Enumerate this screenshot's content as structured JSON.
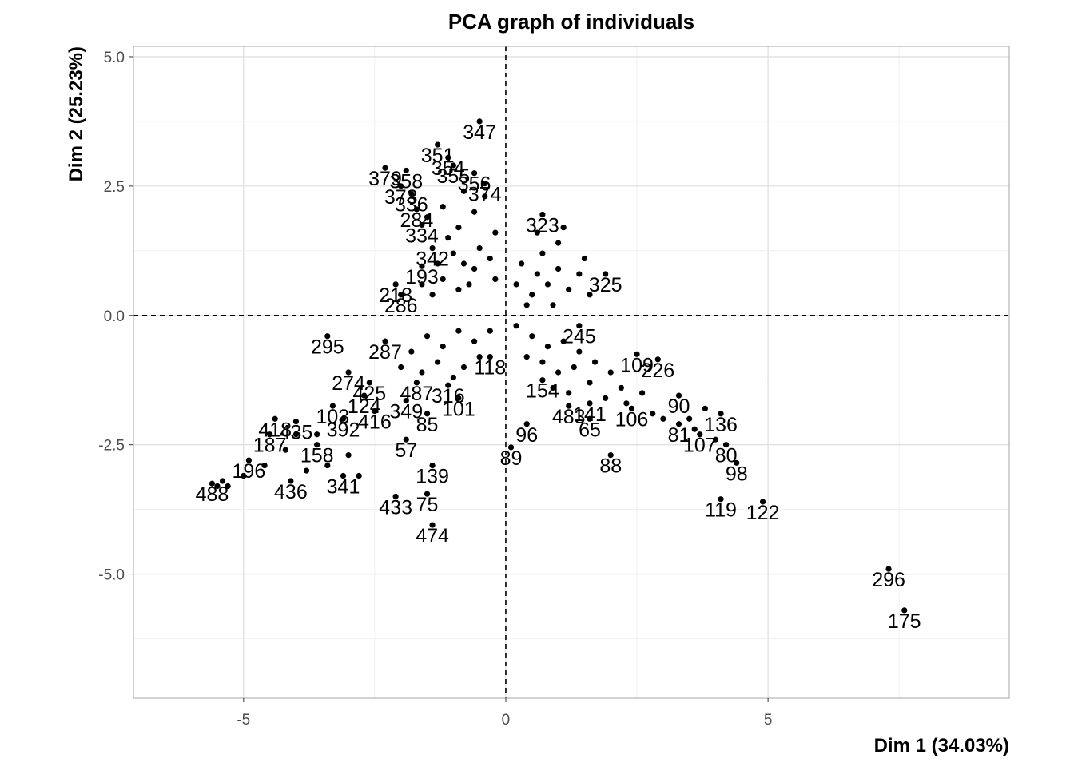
{
  "chart_data": {
    "type": "scatter",
    "title": "PCA graph of individuals",
    "xlabel": "Dim 1 (34.03%)",
    "ylabel": "Dim 2 (25.23%)",
    "xlim": [
      -7.1,
      9.6
    ],
    "ylim": [
      -7.4,
      5.2
    ],
    "x_ticks": [
      -5,
      0,
      5
    ],
    "x_tick_labels": [
      "-5",
      "0",
      "5"
    ],
    "y_ticks": [
      5.0,
      2.5,
      0.0,
      -2.5,
      -5.0
    ],
    "y_tick_labels": [
      "5.0",
      "2.5",
      "0.0",
      "-2.5",
      "-5.0"
    ],
    "grid": true,
    "reference_lines": {
      "x": 0,
      "y": 0,
      "style": "dashed"
    },
    "point_color": "#000000",
    "points": [
      {
        "label": "347",
        "x": -0.5,
        "y": 3.75
      },
      {
        "label": "351",
        "x": -1.3,
        "y": 3.3
      },
      {
        "label": "354",
        "x": -1.1,
        "y": 3.05
      },
      {
        "label": "355",
        "x": -1.0,
        "y": 2.9
      },
      {
        "label": "356",
        "x": -0.6,
        "y": 2.75
      },
      {
        "label": "374",
        "x": -0.4,
        "y": 2.55
      },
      {
        "label": "379",
        "x": -2.3,
        "y": 2.85
      },
      {
        "label": "358",
        "x": -1.9,
        "y": 2.8
      },
      {
        "label": "373",
        "x": -2.0,
        "y": 2.5
      },
      {
        "label": "336",
        "x": -1.8,
        "y": 2.35
      },
      {
        "label": "284",
        "x": -1.7,
        "y": 2.05
      },
      {
        "label": "334",
        "x": -1.6,
        "y": 1.75
      },
      {
        "label": "342",
        "x": -1.4,
        "y": 1.3
      },
      {
        "label": "193",
        "x": -1.6,
        "y": 0.95
      },
      {
        "label": "218",
        "x": -2.1,
        "y": 0.6
      },
      {
        "label": "286",
        "x": -2.0,
        "y": 0.4
      },
      {
        "label": "323",
        "x": 0.7,
        "y": 1.95
      },
      {
        "label": "325",
        "x": 1.9,
        "y": 0.8
      },
      {
        "label": "295",
        "x": -3.4,
        "y": -0.4
      },
      {
        "label": "287",
        "x": -2.3,
        "y": -0.5
      },
      {
        "label": "274",
        "x": -3.0,
        "y": -1.1
      },
      {
        "label": "425",
        "x": -2.6,
        "y": -1.3
      },
      {
        "label": "124",
        "x": -2.7,
        "y": -1.55
      },
      {
        "label": "103",
        "x": -3.3,
        "y": -1.75
      },
      {
        "label": "416",
        "x": -2.5,
        "y": -1.85
      },
      {
        "label": "392",
        "x": -3.1,
        "y": -2.0
      },
      {
        "label": "435",
        "x": -4.0,
        "y": -2.05
      },
      {
        "label": "418",
        "x": -4.4,
        "y": -2.0
      },
      {
        "label": "349",
        "x": -1.9,
        "y": -1.65
      },
      {
        "label": "487",
        "x": -1.7,
        "y": -1.3
      },
      {
        "label": "316",
        "x": -1.1,
        "y": -1.35
      },
      {
        "label": "101",
        "x": -0.9,
        "y": -1.6
      },
      {
        "label": "118",
        "x": -0.3,
        "y": -0.8
      },
      {
        "label": "85",
        "x": -1.5,
        "y": -1.9
      },
      {
        "label": "57",
        "x": -1.9,
        "y": -2.4
      },
      {
        "label": "139",
        "x": -1.4,
        "y": -2.9
      },
      {
        "label": "433",
        "x": -2.1,
        "y": -3.5
      },
      {
        "label": "75",
        "x": -1.5,
        "y": -3.45
      },
      {
        "label": "474",
        "x": -1.4,
        "y": -4.05
      },
      {
        "label": "341",
        "x": -3.1,
        "y": -3.1
      },
      {
        "label": "436",
        "x": -4.1,
        "y": -3.2
      },
      {
        "label": "187",
        "x": -4.5,
        "y": -2.3
      },
      {
        "label": "158",
        "x": -3.6,
        "y": -2.5
      },
      {
        "label": "196",
        "x": -4.9,
        "y": -2.8
      },
      {
        "label": "488",
        "x": -5.6,
        "y": -3.25
      },
      {
        "label": "96",
        "x": 0.4,
        "y": -2.1
      },
      {
        "label": "89",
        "x": 0.1,
        "y": -2.55
      },
      {
        "label": "65",
        "x": 1.6,
        "y": -2.0
      },
      {
        "label": "88",
        "x": 2.0,
        "y": -2.7
      },
      {
        "label": "154",
        "x": 0.7,
        "y": -1.25
      },
      {
        "label": "109",
        "x": 2.5,
        "y": -0.75
      },
      {
        "label": "226",
        "x": 2.9,
        "y": -0.85
      },
      {
        "label": "90",
        "x": 3.3,
        "y": -1.55
      },
      {
        "label": "136",
        "x": 4.1,
        "y": -1.9
      },
      {
        "label": "80",
        "x": 4.2,
        "y": -2.5
      },
      {
        "label": "98",
        "x": 4.4,
        "y": -2.85
      },
      {
        "label": "119",
        "x": 4.1,
        "y": -3.55
      },
      {
        "label": "122",
        "x": 4.9,
        "y": -3.6
      },
      {
        "label": "296",
        "x": 7.3,
        "y": -4.9
      },
      {
        "label": "175",
        "x": 7.6,
        "y": -5.7
      },
      {
        "label": "141",
        "x": 1.6,
        "y": -1.7
      },
      {
        "label": "106",
        "x": 2.4,
        "y": -1.8
      },
      {
        "label": "81",
        "x": 3.3,
        "y": -2.1
      },
      {
        "label": "245",
        "x": 1.4,
        "y": -0.2
      },
      {
        "label": "483",
        "x": 1.2,
        "y": -1.75
      },
      {
        "label": "107",
        "x": 3.7,
        "y": -2.3
      }
    ],
    "cloud_points": [
      {
        "x": -1.0,
        "y": 1.2
      },
      {
        "x": -0.8,
        "y": 1.0
      },
      {
        "x": -0.6,
        "y": 0.9
      },
      {
        "x": -1.2,
        "y": 0.7
      },
      {
        "x": -0.9,
        "y": 0.5
      },
      {
        "x": -1.4,
        "y": 0.4
      },
      {
        "x": -0.5,
        "y": 1.3
      },
      {
        "x": -0.7,
        "y": 0.6
      },
      {
        "x": -1.1,
        "y": 1.5
      },
      {
        "x": -0.3,
        "y": 1.1
      },
      {
        "x": -0.2,
        "y": 0.7
      },
      {
        "x": -1.3,
        "y": 1.0
      },
      {
        "x": -0.9,
        "y": 1.7
      },
      {
        "x": -0.6,
        "y": 2.0
      },
      {
        "x": -0.4,
        "y": 2.3
      },
      {
        "x": -1.2,
        "y": 2.1
      },
      {
        "x": -0.8,
        "y": 2.4
      },
      {
        "x": -1.5,
        "y": 1.9
      },
      {
        "x": -0.2,
        "y": 1.6
      },
      {
        "x": -1.6,
        "y": 0.6
      },
      {
        "x": 0.6,
        "y": 0.8
      },
      {
        "x": 0.8,
        "y": 0.6
      },
      {
        "x": 1.0,
        "y": 0.9
      },
      {
        "x": 0.5,
        "y": 0.4
      },
      {
        "x": 1.2,
        "y": 0.5
      },
      {
        "x": 0.7,
        "y": 1.2
      },
      {
        "x": 1.0,
        "y": 1.4
      },
      {
        "x": 0.3,
        "y": 1.0
      },
      {
        "x": 1.4,
        "y": 0.8
      },
      {
        "x": 0.9,
        "y": 0.2
      },
      {
        "x": 0.4,
        "y": 0.2
      },
      {
        "x": 1.6,
        "y": 0.4
      },
      {
        "x": 0.6,
        "y": 1.6
      },
      {
        "x": 1.1,
        "y": 1.7
      },
      {
        "x": 0.2,
        "y": 0.6
      },
      {
        "x": 1.5,
        "y": 1.1
      },
      {
        "x": -1.5,
        "y": -0.4
      },
      {
        "x": -1.2,
        "y": -0.6
      },
      {
        "x": -0.9,
        "y": -0.3
      },
      {
        "x": -0.6,
        "y": -0.5
      },
      {
        "x": -1.8,
        "y": -0.7
      },
      {
        "x": -1.3,
        "y": -0.9
      },
      {
        "x": -0.8,
        "y": -1.0
      },
      {
        "x": -0.5,
        "y": -0.8
      },
      {
        "x": -2.0,
        "y": -1.0
      },
      {
        "x": -1.6,
        "y": -1.1
      },
      {
        "x": -1.0,
        "y": -1.2
      },
      {
        "x": -0.3,
        "y": -0.3
      },
      {
        "x": 0.5,
        "y": -0.4
      },
      {
        "x": 0.8,
        "y": -0.6
      },
      {
        "x": 1.1,
        "y": -0.5
      },
      {
        "x": 1.4,
        "y": -0.7
      },
      {
        "x": 0.7,
        "y": -0.9
      },
      {
        "x": 1.0,
        "y": -1.1
      },
      {
        "x": 1.3,
        "y": -1.0
      },
      {
        "x": 1.7,
        "y": -0.9
      },
      {
        "x": 2.0,
        "y": -1.1
      },
      {
        "x": 1.6,
        "y": -1.3
      },
      {
        "x": 2.2,
        "y": -1.4
      },
      {
        "x": 1.9,
        "y": -1.6
      },
      {
        "x": 2.6,
        "y": -1.5
      },
      {
        "x": 2.3,
        "y": -1.7
      },
      {
        "x": 0.9,
        "y": -1.4
      },
      {
        "x": 1.2,
        "y": -1.5
      },
      {
        "x": 0.4,
        "y": -0.8
      },
      {
        "x": 0.2,
        "y": -0.2
      },
      {
        "x": 2.8,
        "y": -1.9
      },
      {
        "x": 3.0,
        "y": -2.0
      },
      {
        "x": -3.0,
        "y": -2.7
      },
      {
        "x": -3.4,
        "y": -2.9
      },
      {
        "x": -3.8,
        "y": -3.0
      },
      {
        "x": -4.2,
        "y": -2.6
      },
      {
        "x": -4.6,
        "y": -2.9
      },
      {
        "x": -5.0,
        "y": -3.1
      },
      {
        "x": -5.3,
        "y": -3.3
      },
      {
        "x": -3.6,
        "y": -2.3
      },
      {
        "x": -2.8,
        "y": -3.1
      },
      {
        "x": -4.0,
        "y": -2.3
      },
      {
        "x": -5.5,
        "y": -3.3
      },
      {
        "x": -5.4,
        "y": -3.2
      },
      {
        "x": 3.5,
        "y": -2.0
      },
      {
        "x": 3.8,
        "y": -1.8
      },
      {
        "x": 3.6,
        "y": -2.2
      },
      {
        "x": 4.0,
        "y": -2.4
      }
    ]
  }
}
